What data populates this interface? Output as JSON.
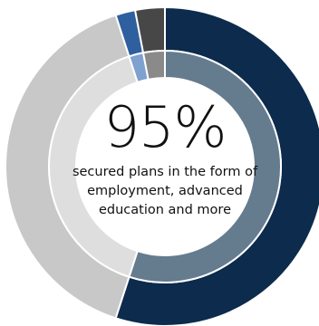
{
  "chart_data": {
    "type": "pie",
    "style": "donut",
    "rings": [
      {
        "name": "",
        "slices": [
          {
            "value": 55,
            "color": "#0c2b4d"
          },
          {
            "value": 40,
            "color": "#c8c8c8"
          },
          {
            "value": 2,
            "color": "#2e5f9e"
          },
          {
            "value": 3,
            "color": "#474747"
          }
        ]
      },
      {
        "name": "",
        "slices": [
          {
            "value": 55,
            "color": "#657b8e"
          },
          {
            "value": 40,
            "color": "#dedede"
          },
          {
            "value": 2,
            "color": "#7ea1cf"
          },
          {
            "value": 3,
            "color": "#8a8a8a"
          }
        ]
      }
    ],
    "center_value": "95%",
    "center_caption": "secured plans in the form of employment, advanced education and more"
  },
  "colors": {
    "background": "#ffffff",
    "center_fill": "#ffffff",
    "text": "#111111"
  }
}
